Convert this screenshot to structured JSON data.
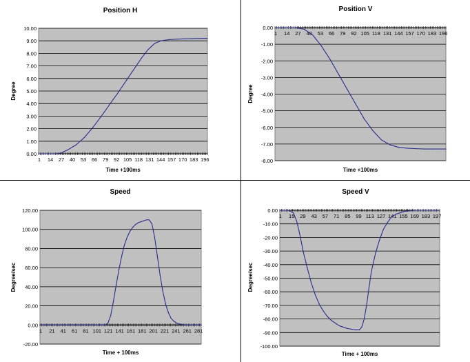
{
  "chart_data": [
    {
      "type": "line",
      "title": "Position H",
      "xlabel": "Time +100ms",
      "ylabel": "Degree",
      "ylim": [
        0,
        10
      ],
      "y_ticks": [
        "0.00",
        "1.00",
        "2.00",
        "3.00",
        "4.00",
        "5.00",
        "6.00",
        "7.00",
        "8.00",
        "9.00",
        "10.00"
      ],
      "x_ticks": [
        "1",
        "14",
        "27",
        "40",
        "53",
        "66",
        "79",
        "92",
        "105",
        "118",
        "131",
        "144",
        "157",
        "170",
        "183",
        "196"
      ],
      "xlim": [
        1,
        200
      ],
      "grid": true,
      "plot_background": "#c0c0c0",
      "line_color": "#2a2a8c",
      "series": [
        {
          "x": [
            1,
            20,
            27,
            35,
            45,
            55,
            65,
            75,
            85,
            95,
            105,
            115,
            122,
            130,
            138,
            145,
            155,
            170,
            185,
            200
          ],
          "y": [
            0,
            0,
            0.05,
            0.3,
            0.7,
            1.3,
            2.1,
            3.0,
            3.95,
            4.9,
            5.9,
            6.9,
            7.6,
            8.3,
            8.8,
            9.0,
            9.1,
            9.15,
            9.18,
            9.2
          ]
        }
      ]
    },
    {
      "type": "line",
      "title": "Position V",
      "xlabel": "Time +100ms",
      "ylabel": "Degree",
      "ylim": [
        -8,
        0
      ],
      "y_ticks": [
        "0.00",
        "-1.00",
        "-2.00",
        "-3.00",
        "-4.00",
        "-5.00",
        "-6.00",
        "-7.00",
        "-8.00"
      ],
      "x_ticks": [
        "1",
        "14",
        "27",
        "40",
        "53",
        "66",
        "79",
        "92",
        "105",
        "118",
        "131",
        "144",
        "157",
        "170",
        "183",
        "196"
      ],
      "xlim": [
        1,
        200
      ],
      "grid": true,
      "plot_background": "#c0c0c0",
      "line_color": "#2a2a8c",
      "series": [
        {
          "x": [
            1,
            25,
            35,
            45,
            55,
            65,
            75,
            85,
            95,
            105,
            115,
            125,
            135,
            145,
            155,
            165,
            175,
            185,
            200
          ],
          "y": [
            0,
            0,
            -0.1,
            -0.45,
            -1.1,
            -1.9,
            -2.8,
            -3.7,
            -4.6,
            -5.5,
            -6.2,
            -6.75,
            -7.05,
            -7.2,
            -7.25,
            -7.28,
            -7.3,
            -7.3,
            -7.3
          ]
        }
      ]
    },
    {
      "type": "line",
      "title": "Speed",
      "xlabel": "Time + 100ms",
      "ylabel": "Degree/sec",
      "ylim": [
        -20,
        120
      ],
      "y_ticks": [
        "120.00",
        "100.00",
        "80.00",
        "60.00",
        "40.00",
        "20.00",
        "0.00",
        "-20.00"
      ],
      "x_ticks": [
        "1",
        "21",
        "41",
        "61",
        "81",
        "101",
        "121",
        "141",
        "161",
        "181",
        "201",
        "221",
        "241",
        "261",
        "281"
      ],
      "xlim": [
        1,
        295
      ],
      "grid": true,
      "plot_background": "#c0c0c0",
      "line_color": "#2a2a8c",
      "series": [
        {
          "x": [
            1,
            110,
            120,
            125,
            130,
            135,
            140,
            145,
            150,
            155,
            160,
            165,
            170,
            175,
            180,
            185,
            190,
            195,
            200,
            205,
            210,
            215,
            220,
            225,
            230,
            235,
            240,
            245,
            250,
            255,
            260,
            265,
            270,
            275,
            295
          ],
          "y": [
            0,
            0,
            0,
            2,
            10,
            25,
            42,
            58,
            72,
            84,
            92,
            98,
            102,
            105,
            107,
            108,
            109,
            110,
            110,
            106,
            92,
            72,
            52,
            35,
            22,
            13,
            7,
            4,
            2,
            1,
            0.5,
            0.2,
            0,
            0,
            0
          ]
        }
      ]
    },
    {
      "type": "line",
      "title": "Speed V",
      "xlabel": "Time + 100ms",
      "ylabel": "Degree/sec",
      "ylim": [
        -100,
        0
      ],
      "y_ticks": [
        "0.00",
        "-10.00",
        "-20.00",
        "-30.00",
        "-40.00",
        "-50.00",
        "-60.00",
        "-70.00",
        "-80.00",
        "-90.00",
        "-100.00"
      ],
      "x_ticks": [
        "1",
        "15",
        "29",
        "43",
        "57",
        "71",
        "85",
        "99",
        "113",
        "127",
        "141",
        "155",
        "169",
        "183",
        "197"
      ],
      "xlim": [
        1,
        200
      ],
      "grid": true,
      "plot_background": "#c0c0c0",
      "line_color": "#2a2a8c",
      "series": [
        {
          "x": [
            1,
            12,
            18,
            22,
            26,
            30,
            35,
            40,
            45,
            50,
            55,
            60,
            65,
            70,
            75,
            80,
            85,
            90,
            95,
            100,
            103,
            106,
            109,
            112,
            115,
            120,
            125,
            130,
            135,
            140,
            145,
            150,
            155,
            160,
            165,
            170,
            180,
            190,
            200
          ],
          "y": [
            0,
            0,
            -2,
            -8,
            -18,
            -30,
            -42,
            -53,
            -62,
            -69,
            -74,
            -78,
            -81,
            -83,
            -85,
            -86,
            -87,
            -87.5,
            -88,
            -88,
            -86,
            -80,
            -70,
            -57,
            -45,
            -32,
            -22,
            -14,
            -9,
            -5,
            -3,
            -2,
            -1,
            -0.5,
            -0.2,
            0,
            0,
            0,
            0
          ]
        }
      ]
    }
  ]
}
